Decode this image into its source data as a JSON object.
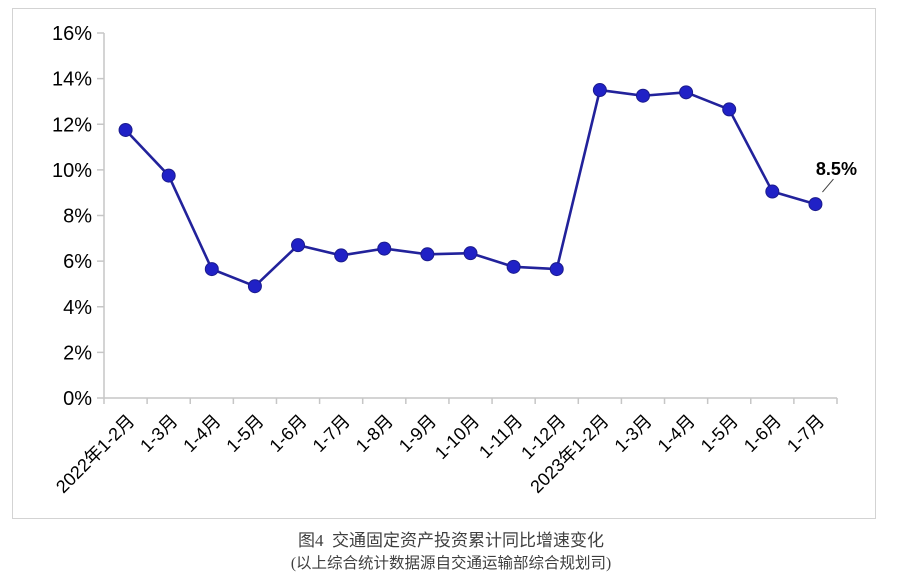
{
  "figure": {
    "caption_line1": "图4  交通固定资产投资累计同比增速变化",
    "caption_line2": "(以上综合统计数据源自交通运输部综合规划司)"
  },
  "chart_data": {
    "type": "line",
    "title": "图4 交通固定资产投资累计同比增速变化",
    "categories": [
      "2022年1-2月",
      "1-3月",
      "1-4月",
      "1-5月",
      "1-6月",
      "1-7月",
      "1-8月",
      "1-9月",
      "1-10月",
      "1-11月",
      "1-12月",
      "2023年1-2月",
      "1-3月",
      "1-4月",
      "1-5月",
      "1-6月",
      "1-7月"
    ],
    "values": [
      11.75,
      9.75,
      5.65,
      4.9,
      6.7,
      6.25,
      6.55,
      6.3,
      6.35,
      5.75,
      5.65,
      13.5,
      13.25,
      13.4,
      12.65,
      9.05,
      8.5
    ],
    "xlabel": "",
    "ylabel": "",
    "ylim": [
      0,
      16
    ],
    "ytick_step": 2,
    "ytick_labels": [
      "0%",
      "2%",
      "4%",
      "6%",
      "8%",
      "10%",
      "12%",
      "14%",
      "16%"
    ],
    "grid": false,
    "legend_position": "none",
    "annotation": {
      "text": "8.5%",
      "index": 16
    },
    "colors": {
      "line": "#22229b",
      "marker_fill": "#2021c6",
      "marker_stroke": "#1b1b8c",
      "axis": "#c6c6c6",
      "tick_label": "#000000",
      "annotation_text": "#000000",
      "leader_line": "#404040"
    }
  }
}
